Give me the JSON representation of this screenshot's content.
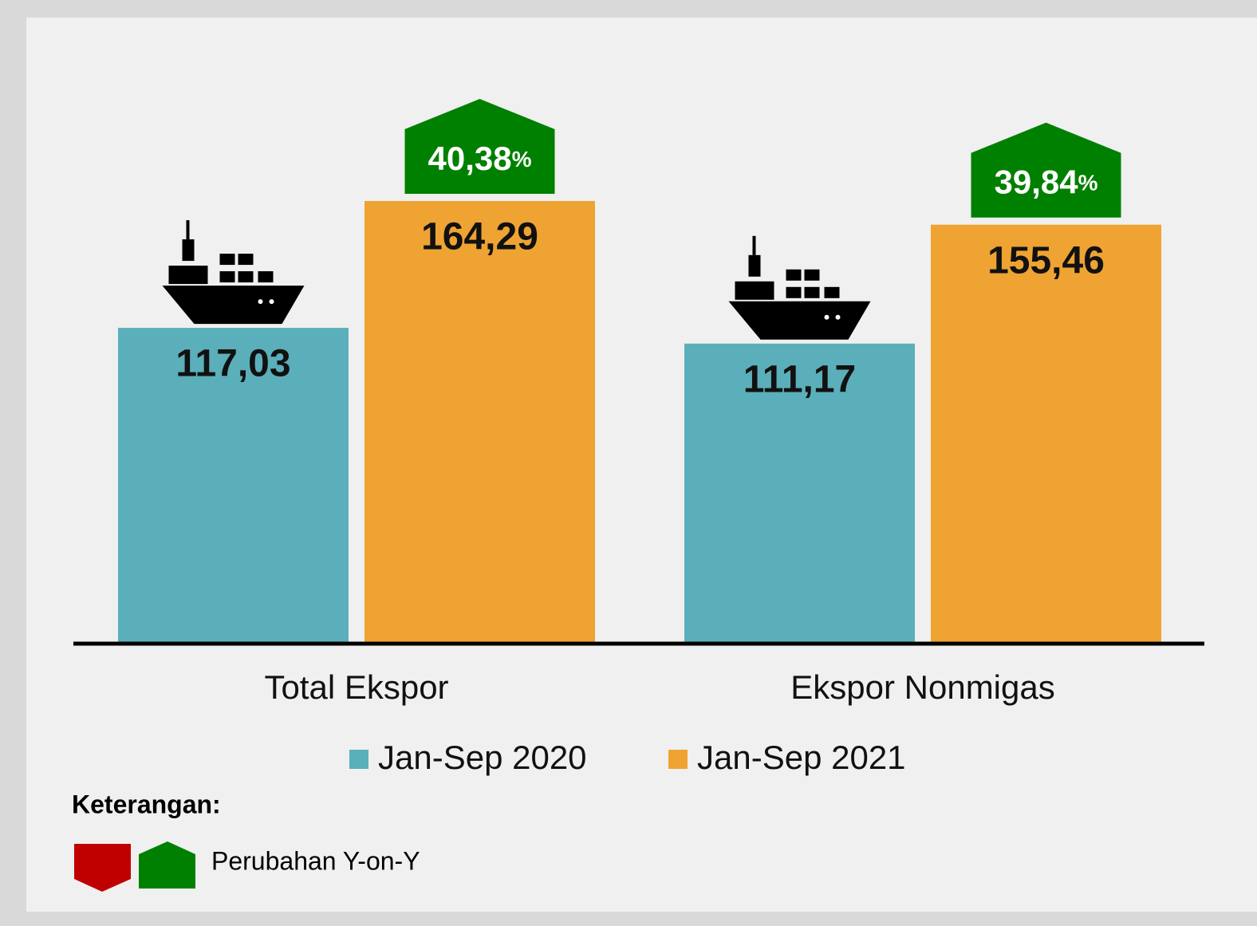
{
  "chart_data": {
    "type": "bar",
    "categories": [
      "Total Ekspor",
      "Ekspor Nonmigas"
    ],
    "series": [
      {
        "name": "Jan-Sep 2020",
        "color": "#5aafba",
        "values": [
          117.03,
          111.17
        ],
        "value_labels": [
          "117,03",
          "111,17"
        ]
      },
      {
        "name": "Jan-Sep 2021",
        "color": "#eea332",
        "values": [
          164.29,
          155.46
        ],
        "value_labels": [
          "164,29",
          "155,46"
        ]
      }
    ],
    "changes": {
      "values": [
        40.38,
        39.84
      ],
      "value_labels": [
        "40,38",
        "39,84"
      ],
      "unit": "%",
      "up_color": "#008000",
      "down_color": "#c00000"
    },
    "note": {
      "title": "Keterangan:",
      "text": "Perubahan Y-on-Y"
    }
  }
}
